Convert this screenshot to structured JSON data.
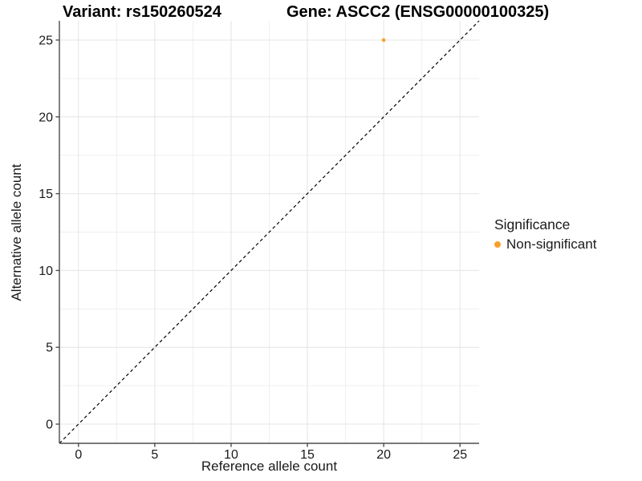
{
  "titles": {
    "variant": "Variant: rs150260524",
    "gene": "Gene: ASCC2 (ENSG00000100325)"
  },
  "axes": {
    "x": {
      "label": "Reference allele count"
    },
    "y": {
      "label": "Alternative allele count"
    }
  },
  "legend": {
    "title": "Significance",
    "items": [
      {
        "label": "Non-significant",
        "color": "#F9A02B"
      }
    ]
  },
  "chart_data": {
    "type": "scatter",
    "title": "Variant: rs150260524 | Gene: ASCC2 (ENSG00000100325)",
    "xlabel": "Reference allele count",
    "ylabel": "Alternative allele count",
    "xlim": [
      -1.25,
      26.25
    ],
    "ylim": [
      -1.25,
      26.25
    ],
    "x_ticks": [
      0,
      5,
      10,
      15,
      20,
      25
    ],
    "y_ticks": [
      0,
      5,
      10,
      15,
      20,
      25
    ],
    "minor_ticks": [
      2.5,
      7.5,
      12.5,
      17.5,
      22.5
    ],
    "grid": true,
    "legend_position": "right",
    "series": [
      {
        "name": "Non-significant",
        "color": "#F9A02B",
        "points": [
          {
            "x": 20,
            "y": 25
          }
        ]
      }
    ],
    "identity_line": {
      "style": "dashed",
      "slope": 1,
      "intercept": 0,
      "color": "#000000"
    },
    "colors": {
      "grid_major": "#E4E4E4",
      "grid_minor": "#EFEFEF",
      "axis_line": "#4D4D4D",
      "tick_mark": "#4D4D4D",
      "tick_label": "#1A1A1A",
      "background": "#FFFFFF"
    }
  }
}
